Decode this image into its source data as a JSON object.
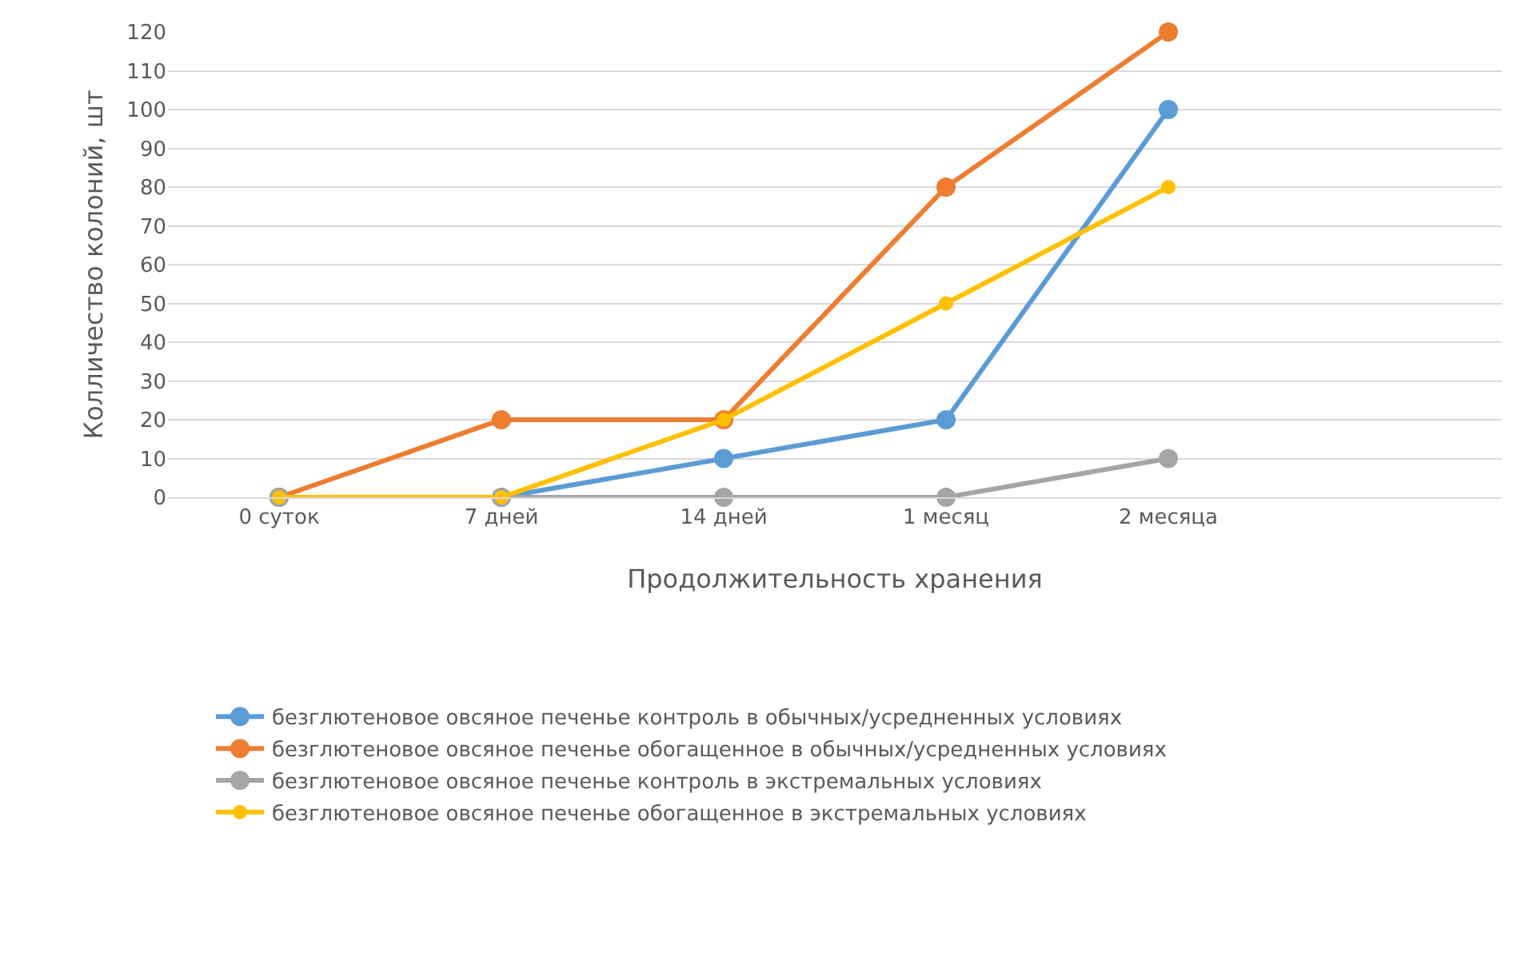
{
  "chart_data": {
    "type": "line",
    "xlabel": "Продолжительность хранения",
    "ylabel": "Колличество колоний, шт",
    "categories": [
      "0 суток",
      "7 дней",
      "14 дней",
      "1 месяц",
      "2 месяца",
      null
    ],
    "series": [
      {
        "name": "безглютеновое овсяное печенье контроль в обычных/усредненных условиях",
        "color": "#5b9bd5",
        "values": [
          0,
          0,
          10,
          20,
          100,
          null
        ]
      },
      {
        "name": "безглютеновое овсяное печенье обогащенное в обычных/усредненных условиях",
        "color": "#ed7d31",
        "values": [
          0,
          20,
          20,
          80,
          120,
          null
        ]
      },
      {
        "name": "безглютеновое овсяное печенье контроль в экстремальных условиях",
        "color": "#a5a5a5",
        "values": [
          0,
          0,
          0,
          0,
          10,
          null
        ]
      },
      {
        "name": "безглютеновое овсяное печенье обогащенное в экстремальных условиях",
        "color": "#ffc000",
        "values": [
          0,
          0,
          20,
          50,
          80,
          null
        ]
      }
    ],
    "ylim": [
      0,
      120
    ],
    "yticks": [
      0,
      10,
      20,
      30,
      40,
      50,
      60,
      70,
      80,
      90,
      100,
      110,
      120
    ],
    "grid": "y",
    "legend": "bottom",
    "marker": "circle",
    "line_style": "solid"
  }
}
